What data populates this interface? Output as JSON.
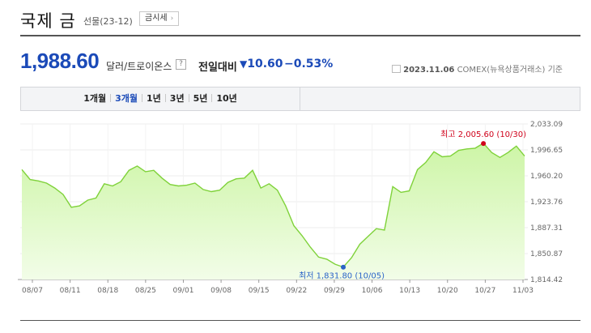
{
  "header": {
    "title": "국제 금",
    "subtitle": "선물(23-12)",
    "price_button": "금시세",
    "price_button_arrow": "›"
  },
  "quote": {
    "price": "1,988.60",
    "unit": "달러/트로이온스",
    "help_icon": "?",
    "compare_label": "전일대비",
    "change_arrow": "▼",
    "change_value": "10.60",
    "change_percent": "−0.53%",
    "date": "2023.11.06",
    "source": "COMEX(뉴욕상품거래소) 기준",
    "accent_color": "#1b4ab8"
  },
  "tabs": [
    {
      "label": "1개월",
      "active": false
    },
    {
      "label": "3개월",
      "active": true
    },
    {
      "label": "1년",
      "active": false
    },
    {
      "label": "3년",
      "active": false
    },
    {
      "label": "5년",
      "active": false
    },
    {
      "label": "10년",
      "active": false
    }
  ],
  "chart_data": {
    "type": "area",
    "title": "",
    "xlabel": "",
    "ylabel": "",
    "x_tick_labels": [
      "08/07",
      "08/11",
      "08/18",
      "08/25",
      "09/01",
      "09/08",
      "09/15",
      "09/22",
      "09/29",
      "10/06",
      "10/13",
      "10/20",
      "10/27",
      "11/03"
    ],
    "y_tick_labels": [
      "2,033.09",
      "1,996.65",
      "1,960.20",
      "1,923.76",
      "1,887.31",
      "1,850.87",
      "1,814.42"
    ],
    "ylim": [
      1814.42,
      2033.09
    ],
    "grid": true,
    "line_color": "#7fd23a",
    "fill_color": "#cdf5a6",
    "series": [
      {
        "name": "",
        "values": [
          1969,
          1955,
          1953,
          1950,
          1943,
          1934,
          1916,
          1918,
          1926,
          1929,
          1949,
          1946,
          1952,
          1968,
          1974,
          1966,
          1968,
          1957,
          1948,
          1946,
          1947,
          1950,
          1941,
          1938,
          1940,
          1951,
          1956,
          1957,
          1968,
          1943,
          1949,
          1940,
          1918,
          1890,
          1876,
          1860,
          1846,
          1843,
          1836,
          1832,
          1845,
          1864,
          1875,
          1886,
          1884,
          1945,
          1937,
          1939,
          1969,
          1979,
          1994,
          1987,
          1988,
          1996,
          1998,
          1999,
          2006,
          1993,
          1986,
          1993,
          2002,
          1988
        ]
      }
    ],
    "annotations": [
      {
        "label": "최고 2,005.60 (10/30)",
        "index": 56,
        "value": 2005.6,
        "color": "#d0021b"
      },
      {
        "label": "최저 1,831.80 (10/05)",
        "index": 39,
        "value": 1831.8,
        "color": "#2a63c8"
      }
    ]
  }
}
